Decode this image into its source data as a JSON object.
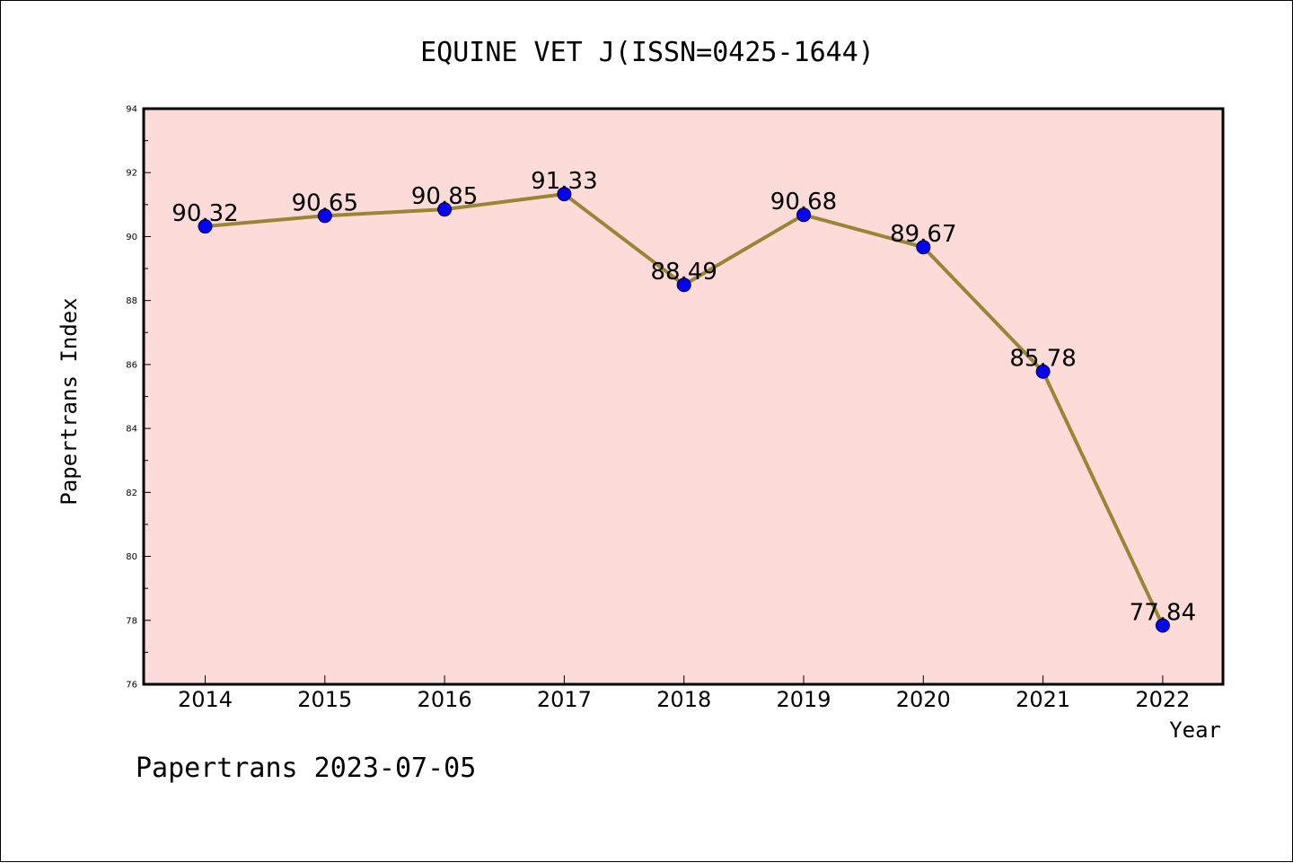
{
  "chart_data": {
    "type": "line",
    "title": "EQUINE VET J(ISSN=0425-1644)",
    "xlabel": "Year",
    "ylabel": "Papertrans Index",
    "categories": [
      "2014",
      "2015",
      "2016",
      "2017",
      "2018",
      "2019",
      "2020",
      "2021",
      "2022"
    ],
    "values": [
      90.32,
      90.65,
      90.85,
      91.33,
      88.49,
      90.68,
      89.67,
      85.78,
      77.84
    ],
    "data_labels": [
      "90.32",
      "90.65",
      "90.85",
      "91.33",
      "88.49",
      "90.68",
      "89.67",
      "85.78",
      "77.84"
    ],
    "ylim": [
      76,
      94
    ],
    "yticks": [
      "76",
      "78",
      "80",
      "82",
      "84",
      "86",
      "88",
      "90",
      "92",
      "94"
    ],
    "grid": false,
    "legend": "none",
    "colors": {
      "plot_background": "#fddbd9",
      "line": "#9a8535",
      "marker": "#0000ff"
    }
  },
  "footer": "Papertrans 2023-07-05"
}
